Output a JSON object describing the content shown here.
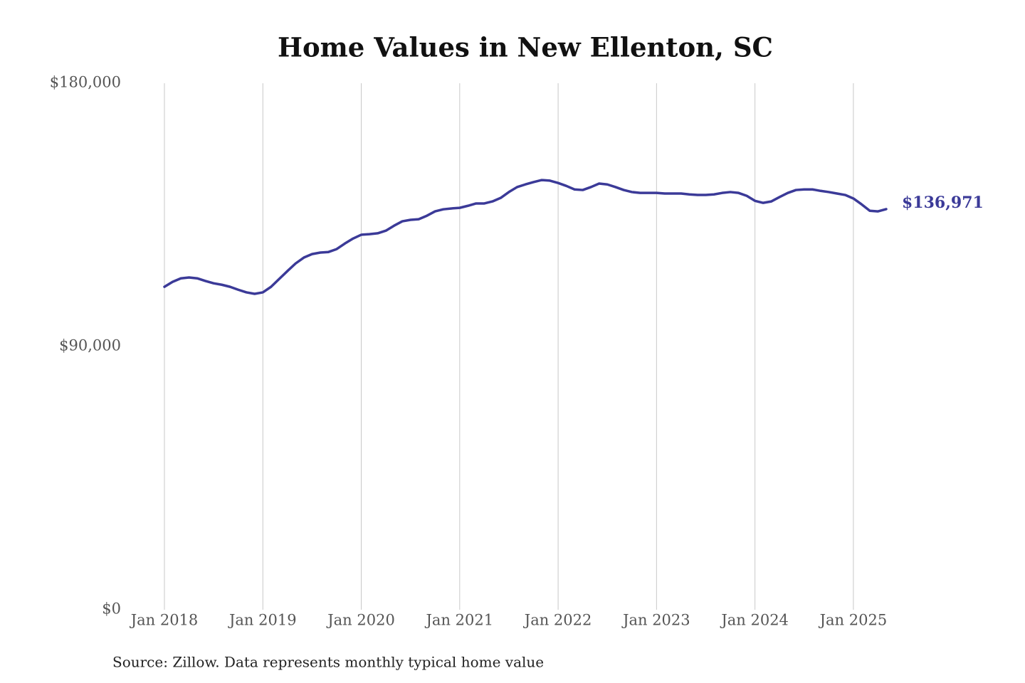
{
  "chart_data": {
    "type": "line",
    "title": "Home Values in New Ellenton, SC",
    "source": "Source: Zillow. Data represents monthly typical home value",
    "x": [
      "2018-01",
      "2018-02",
      "2018-03",
      "2018-04",
      "2018-05",
      "2018-06",
      "2018-07",
      "2018-08",
      "2018-09",
      "2018-10",
      "2018-11",
      "2018-12",
      "2019-01",
      "2019-02",
      "2019-03",
      "2019-04",
      "2019-05",
      "2019-06",
      "2019-07",
      "2019-08",
      "2019-09",
      "2019-10",
      "2019-11",
      "2019-12",
      "2020-01",
      "2020-02",
      "2020-03",
      "2020-04",
      "2020-05",
      "2020-06",
      "2020-07",
      "2020-08",
      "2020-09",
      "2020-10",
      "2020-11",
      "2020-12",
      "2021-01",
      "2021-02",
      "2021-03",
      "2021-04",
      "2021-05",
      "2021-06",
      "2021-07",
      "2021-08",
      "2021-09",
      "2021-10",
      "2021-11",
      "2021-12",
      "2022-01",
      "2022-02",
      "2022-03",
      "2022-04",
      "2022-05",
      "2022-06",
      "2022-07",
      "2022-08",
      "2022-09",
      "2022-10",
      "2022-11",
      "2022-12",
      "2023-01",
      "2023-02",
      "2023-03",
      "2023-04",
      "2023-05",
      "2023-06",
      "2023-07",
      "2023-08",
      "2023-09",
      "2023-10",
      "2023-11",
      "2023-12",
      "2024-01",
      "2024-02",
      "2024-03",
      "2024-04",
      "2024-05",
      "2024-06",
      "2024-07",
      "2024-08",
      "2024-09",
      "2024-10",
      "2024-11",
      "2024-12",
      "2025-01",
      "2025-02",
      "2025-03",
      "2025-04",
      "2025-05"
    ],
    "values": [
      110400,
      112100,
      113300,
      113600,
      113300,
      112400,
      111600,
      111100,
      110400,
      109400,
      108500,
      108000,
      108500,
      110400,
      113100,
      115800,
      118400,
      120400,
      121600,
      122100,
      122300,
      123300,
      125200,
      126900,
      128200,
      128400,
      128700,
      129600,
      131300,
      132800,
      133300,
      133500,
      134700,
      136200,
      136900,
      137200,
      137400,
      138100,
      138900,
      138900,
      139600,
      140800,
      142800,
      144500,
      145400,
      146200,
      146900,
      146700,
      145900,
      144900,
      143700,
      143500,
      144500,
      145700,
      145400,
      144500,
      143500,
      142800,
      142500,
      142500,
      142500,
      142300,
      142300,
      142300,
      142000,
      141800,
      141800,
      142000,
      142500,
      142800,
      142500,
      141500,
      139800,
      139100,
      139600,
      141100,
      142500,
      143500,
      143700,
      143700,
      143200,
      142800,
      142300,
      141800,
      140600,
      138600,
      136400,
      136200,
      136971
    ],
    "value_labels": [
      null,
      null,
      null,
      null,
      null,
      null,
      null,
      null,
      null,
      null,
      null,
      null,
      null,
      null,
      null,
      null,
      null,
      null,
      null,
      null,
      null,
      null,
      null,
      null,
      null,
      null,
      null,
      null,
      null,
      null,
      null,
      null,
      null,
      null,
      null,
      null,
      null,
      null,
      null,
      null,
      null,
      null,
      null,
      null,
      null,
      null,
      null,
      null,
      null,
      null,
      null,
      null,
      null,
      null,
      null,
      null,
      null,
      null,
      null,
      null,
      null,
      null,
      null,
      null,
      null,
      null,
      null,
      null,
      null,
      null,
      null,
      null,
      null,
      null,
      null,
      null,
      null,
      null,
      null,
      null,
      null,
      null,
      null,
      null,
      null,
      null,
      null,
      null,
      "$136,971"
    ],
    "color": "#3b3a98",
    "xlim": [
      "2018-01",
      "2025-05"
    ],
    "xticks": [
      {
        "value": "2018-01",
        "label": "Jan 2018"
      },
      {
        "value": "2019-01",
        "label": "Jan 2019"
      },
      {
        "value": "2020-01",
        "label": "Jan 2020"
      },
      {
        "value": "2021-01",
        "label": "Jan 2021"
      },
      {
        "value": "2022-01",
        "label": "Jan 2022"
      },
      {
        "value": "2023-01",
        "label": "Jan 2023"
      },
      {
        "value": "2024-01",
        "label": "Jan 2024"
      },
      {
        "value": "2025-01",
        "label": "Jan 2025"
      }
    ],
    "ylim": [
      0,
      180000
    ],
    "yticks": [
      {
        "value": 0,
        "label": "$0"
      },
      {
        "value": 90000,
        "label": "$90,000"
      },
      {
        "value": 180000,
        "label": "$180,000"
      }
    ],
    "grid": "x"
  }
}
